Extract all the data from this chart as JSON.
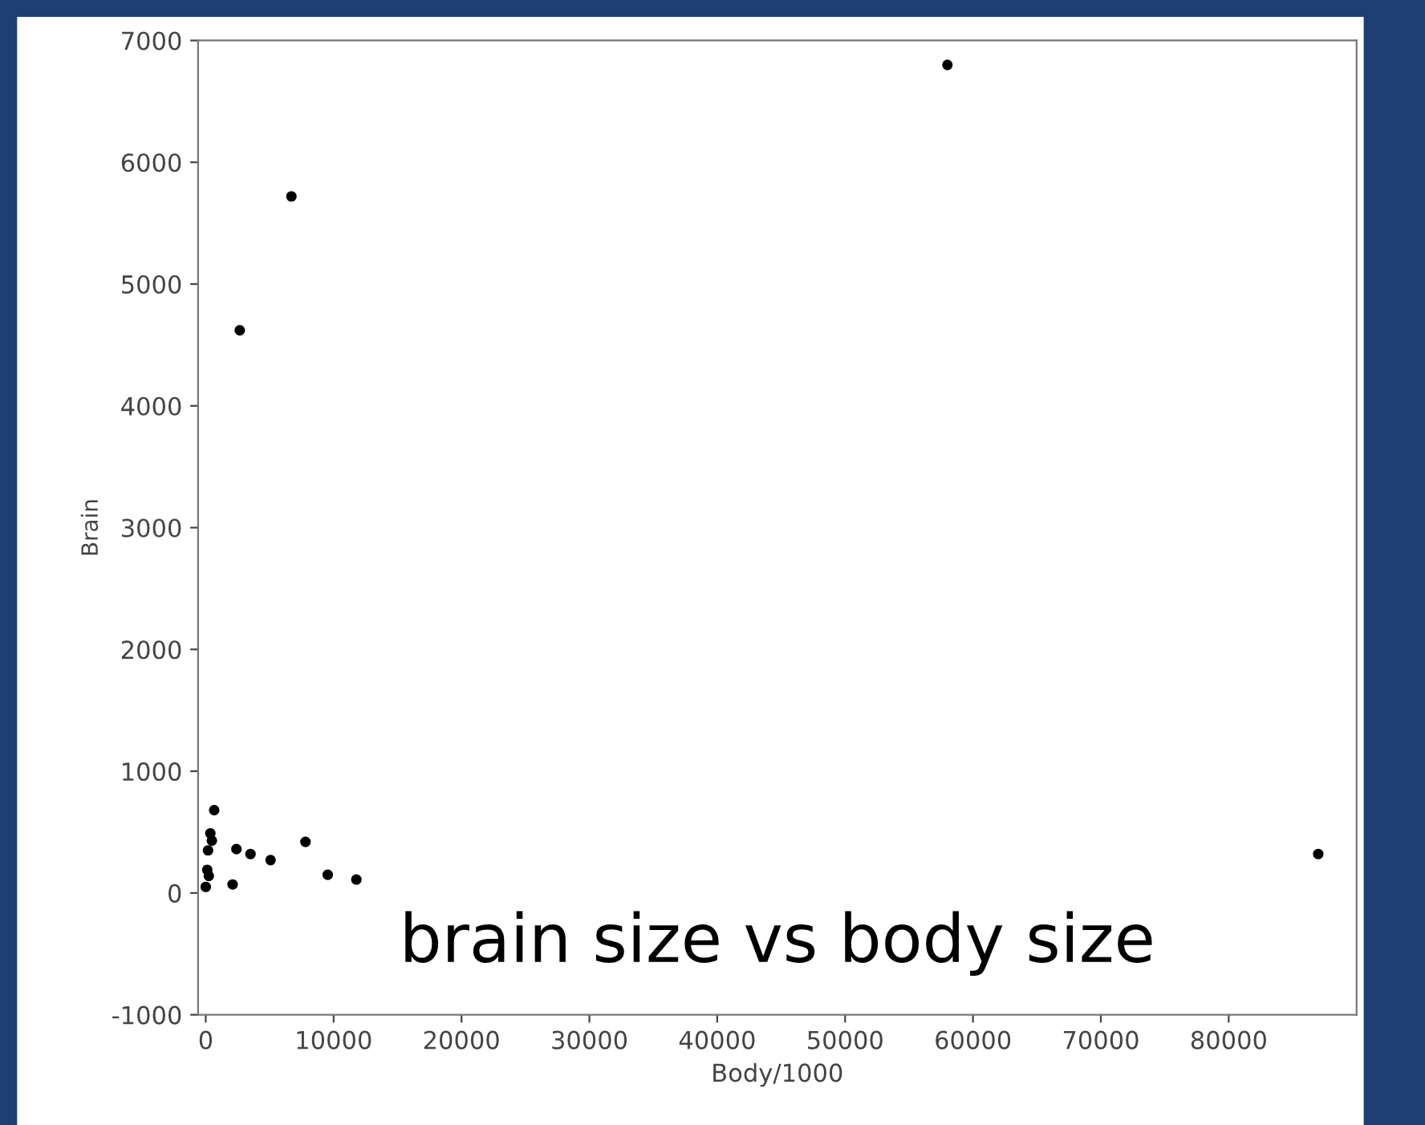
{
  "chart_data": {
    "type": "scatter",
    "xlabel": "Body/1000",
    "ylabel": "Brain",
    "x": [
      58000,
      6700,
      2660,
      87000,
      660,
      360,
      480,
      180,
      2400,
      3500,
      5070,
      7800,
      9540,
      11780,
      2100,
      120,
      240,
      0
    ],
    "values": [
      6800,
      5720,
      4620,
      320,
      680,
      490,
      430,
      350,
      360,
      320,
      270,
      420,
      150,
      110,
      70,
      190,
      140,
      50
    ],
    "color": "#000000",
    "marker": "circle",
    "xlim": [
      -600,
      90000
    ],
    "ylim": [
      -1000,
      7000
    ],
    "xticks": [
      0,
      10000,
      20000,
      30000,
      40000,
      50000,
      60000,
      70000,
      80000
    ],
    "yticks": [
      -1000,
      0,
      1000,
      2000,
      3000,
      4000,
      5000,
      6000,
      7000
    ],
    "grid": false,
    "legend": false,
    "annotations": [
      "brain size vs body size"
    ]
  }
}
